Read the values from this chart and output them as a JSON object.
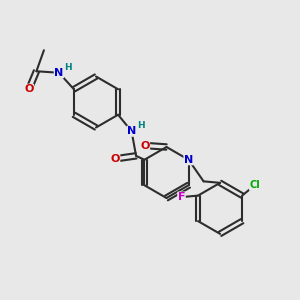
{
  "bg_color": "#e8e8e8",
  "bond_color": "#2d2d2d",
  "bond_width": 1.5,
  "atom_colors": {
    "O": "#cc0000",
    "N": "#0000cc",
    "H": "#008080",
    "Cl": "#00aa00",
    "F": "#cc00cc",
    "C": "#2d2d2d"
  },
  "font_size": 8,
  "fig_size": [
    3.0,
    3.0
  ],
  "dpi": 100
}
